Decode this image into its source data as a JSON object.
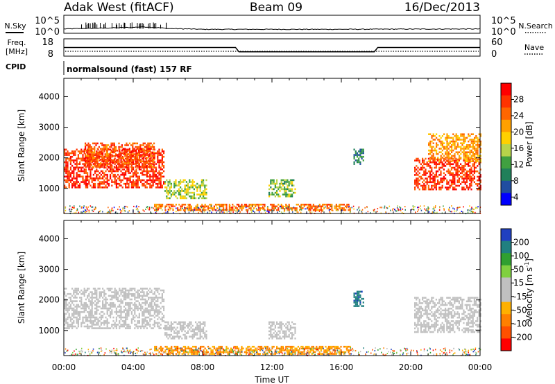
{
  "header": {
    "station": "Adak West (fitACF)",
    "beam": "Beam 09",
    "date": "16/Dec/2013"
  },
  "noise_panel": {
    "left_label": "N.Sky",
    "right_label": "N.Search",
    "ytick_top": "10^5",
    "ytick_bottom": "10^0",
    "ytick_top_right": "10^5",
    "ytick_bottom_right": "10^0"
  },
  "freq_panel": {
    "left_label": "Freq.",
    "left_unit": "[MHz]",
    "right_label": "Nave",
    "ytick_top": "18",
    "ytick_bottom": "8",
    "ytick_top_right": "60",
    "ytick_bottom_right": "0"
  },
  "cpid": {
    "label": "CPID",
    "text": "normalsound (fast) 157 RF"
  },
  "power_colorbar": {
    "label": "Power [dB]",
    "ticks": [
      "28",
      "24",
      "20",
      "16",
      "12",
      "8",
      "4"
    ],
    "colors": [
      "#ff0000",
      "#ff3300",
      "#ff6600",
      "#ffa000",
      "#ffd000",
      "#b8d44a",
      "#40a040",
      "#20805a",
      "#204da0",
      "#0000ff"
    ]
  },
  "velocity_colorbar": {
    "label": "Velocity [m s",
    "label_sup": "-1",
    "label_end": "]",
    "ticks": [
      "200",
      "100",
      "50",
      "15",
      "-15",
      "-50",
      "-100",
      "-200"
    ],
    "colors": [
      "#2040c0",
      "#208080",
      "#30a030",
      "#80d040",
      "#c0c0c0",
      "#c0c0c0",
      "#ffb000",
      "#ff8000",
      "#ff5000",
      "#ff0000"
    ]
  },
  "xaxis": {
    "label": "Time UT",
    "ticks": [
      "00:00",
      "04:00",
      "08:00",
      "12:00",
      "16:00",
      "20:00",
      "00:00"
    ]
  },
  "chart_data": [
    {
      "type": "line",
      "title": "N.Sky / N.Search",
      "xlabel": "Time UT",
      "yscale": "log",
      "ylim": [
        1,
        100000
      ],
      "x": [
        0,
        2,
        4,
        4.5,
        6,
        8,
        12,
        16,
        20,
        24
      ],
      "series": [
        {
          "name": "N.Sky",
          "values": [
            15,
            25,
            40,
            60,
            20,
            12,
            12,
            12,
            14,
            15
          ]
        }
      ]
    },
    {
      "type": "line",
      "title": "Freq. / Nave",
      "xlabel": "Time UT",
      "ylim": [
        8,
        18
      ],
      "x": [
        0,
        9.9,
        10.1,
        17.9,
        18.1,
        24
      ],
      "series": [
        {
          "name": "Freq.",
          "values": [
            13,
            13,
            10.5,
            10.5,
            13,
            13
          ]
        }
      ]
    },
    {
      "type": "heatmap",
      "title": "Power",
      "xlabel": "Time UT",
      "ylabel": "Slant Range [km]",
      "xlim": [
        0,
        24
      ],
      "ylim": [
        180,
        4600
      ],
      "yticks": [
        1000,
        2000,
        3000,
        4000
      ],
      "colorbar": {
        "label": "Power [dB]",
        "min": 0,
        "max": 30
      },
      "regions": [
        {
          "t0": 0.0,
          "t1": 5.8,
          "r0": 1050,
          "r1": 2300,
          "level": 26
        },
        {
          "t0": 1.2,
          "t1": 5.2,
          "r0": 1700,
          "r1": 2500,
          "level": 24
        },
        {
          "t0": 5.8,
          "t1": 8.2,
          "r0": 700,
          "r1": 1300,
          "level": 14
        },
        {
          "t0": 5.2,
          "t1": 16.5,
          "r0": 300,
          "r1": 500,
          "level": 22
        },
        {
          "t0": 11.8,
          "t1": 13.3,
          "r0": 750,
          "r1": 1300,
          "level": 12
        },
        {
          "t0": 16.7,
          "t1": 17.3,
          "r0": 1800,
          "r1": 2300,
          "level": 8
        },
        {
          "t0": 20.2,
          "t1": 24.0,
          "r0": 950,
          "r1": 2000,
          "level": 26
        },
        {
          "t0": 21.0,
          "t1": 24.0,
          "r0": 1900,
          "r1": 2800,
          "level": 20
        }
      ]
    },
    {
      "type": "heatmap",
      "title": "Velocity",
      "xlabel": "Time UT",
      "ylabel": "Slant Range [km]",
      "xlim": [
        0,
        24
      ],
      "ylim": [
        180,
        4600
      ],
      "yticks": [
        1000,
        2000,
        3000,
        4000
      ],
      "colorbar": {
        "label": "Velocity [m s-1]",
        "min": -200,
        "max": 200
      },
      "regions": [
        {
          "t0": 0.0,
          "t1": 5.8,
          "r0": 1050,
          "r1": 2400,
          "level": 0
        },
        {
          "t0": 5.8,
          "t1": 8.2,
          "r0": 750,
          "r1": 1300,
          "level": 0
        },
        {
          "t0": 5.2,
          "t1": 16.5,
          "r0": 250,
          "r1": 500,
          "level": -80
        },
        {
          "t0": 11.8,
          "t1": 13.3,
          "r0": 750,
          "r1": 1300,
          "level": 0
        },
        {
          "t0": 16.7,
          "t1": 17.3,
          "r0": 1800,
          "r1": 2300,
          "level": 150
        },
        {
          "t0": 20.2,
          "t1": 24.0,
          "r0": 950,
          "r1": 2100,
          "level": 0
        }
      ]
    }
  ]
}
